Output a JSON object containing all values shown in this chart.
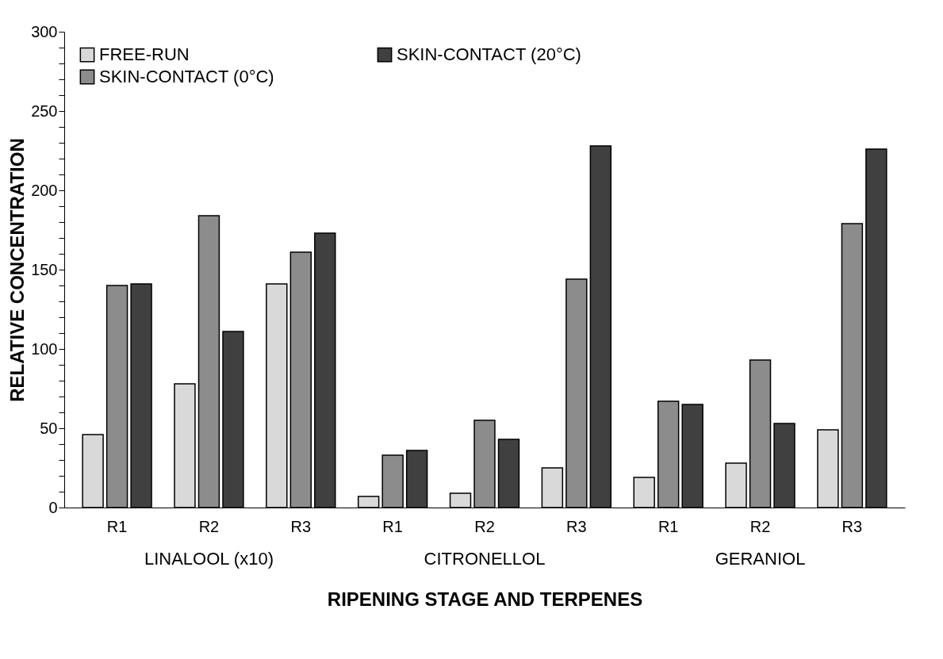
{
  "chart_data": {
    "type": "bar",
    "xlabel": "RIPENING STAGE AND TERPENES",
    "ylabel": "RELATIVE CONCENTRATION",
    "categories": [
      "R1",
      "R2",
      "R3",
      "R1",
      "R2",
      "R3",
      "R1",
      "R2",
      "R3"
    ],
    "annotations": [
      "LINALOOL (x10)",
      "CITRONELLOL",
      "GERANIOL"
    ],
    "series": [
      {
        "name": "FREE-RUN",
        "color": "#d9d9d9",
        "values": [
          46,
          78,
          141,
          7,
          9,
          25,
          19,
          28,
          49
        ]
      },
      {
        "name": "SKIN-CONTACT  (0°C)",
        "color": "#8c8c8c",
        "values": [
          140,
          184,
          161,
          33,
          55,
          144,
          67,
          93,
          179
        ]
      },
      {
        "name": "SKIN-CONTACT  (20°C)",
        "color": "#404040",
        "values": [
          141,
          111,
          173,
          36,
          43,
          228,
          65,
          53,
          226
        ]
      }
    ],
    "ylim": [
      0,
      300
    ],
    "yticks": [
      0,
      {
        "value": 10,
        "label": null
      },
      {
        "value": 20,
        "label": null
      },
      {
        "value": 30,
        "label": null
      },
      {
        "value": 40,
        "label": null
      },
      50,
      {
        "value": 60,
        "label": null
      },
      {
        "value": 70,
        "label": null
      },
      {
        "value": 80,
        "label": null
      },
      {
        "value": 90,
        "label": null
      },
      100,
      {
        "value": 110,
        "label": null
      },
      {
        "value": 120,
        "label": null
      },
      {
        "value": 130,
        "label": null
      },
      {
        "value": 140,
        "label": null
      },
      150,
      {
        "value": 160,
        "label": null
      },
      {
        "value": 170,
        "label": null
      },
      {
        "value": 180,
        "label": null
      },
      {
        "value": 190,
        "label": null
      },
      200,
      {
        "value": 210,
        "label": null
      },
      {
        "value": 220,
        "label": null
      },
      {
        "value": 230,
        "label": null
      },
      {
        "value": 240,
        "label": null
      },
      250,
      {
        "value": 260,
        "label": null
      },
      {
        "value": 270,
        "label": null
      },
      {
        "value": 280,
        "label": null
      },
      {
        "value": 290,
        "label": null
      },
      300
    ],
    "grid": false,
    "legend": "top left"
  }
}
